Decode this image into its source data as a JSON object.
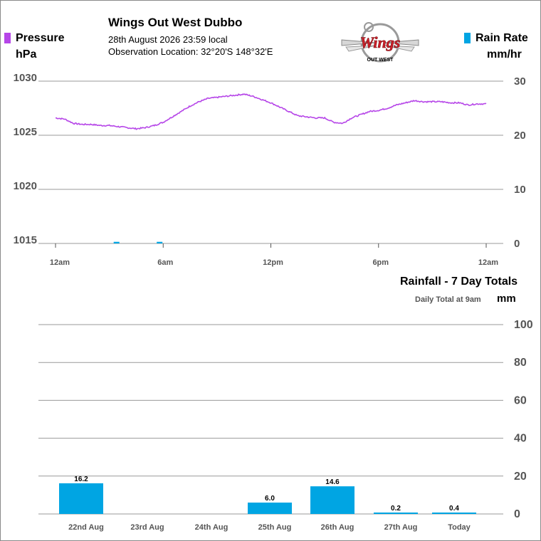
{
  "header": {
    "station_name": "Wings Out West Dubbo",
    "datetime": "28th August 2026  23:59 local",
    "location": "Observation Location: 32°20'S 148°32'E",
    "logo_text": "Wings",
    "logo_subtext": "OUT WEST"
  },
  "legend": {
    "pressure_label": "Pressure",
    "pressure_unit": "hPa",
    "pressure_color": "#b646e8",
    "rain_label": "Rain Rate",
    "rain_unit": "mm/hr",
    "rain_color": "#00a5e3"
  },
  "rain7": {
    "title": "Rainfall - 7 Day Totals",
    "subtitle": "Daily Total at 9am",
    "unit": "mm"
  },
  "chart_data": [
    {
      "type": "line",
      "x_ticks": [
        "12am",
        "6am",
        "12pm",
        "6pm",
        "12am"
      ],
      "x_range_hours": [
        0,
        24
      ],
      "y_left_ticks": [
        "1030",
        "1025",
        "1020",
        "1015"
      ],
      "y_left_range": [
        1015,
        1030
      ],
      "y_right_ticks": [
        "30",
        "20",
        "10",
        "0"
      ],
      "y_right_range": [
        0,
        30
      ],
      "grid": true,
      "series": [
        {
          "name": "Pressure",
          "color": "#b646e8",
          "x": [
            0,
            0.5,
            1,
            1.5,
            2,
            2.5,
            3,
            3.5,
            4,
            4.5,
            5,
            5.5,
            6,
            6.5,
            7,
            7.5,
            8,
            8.5,
            9,
            9.5,
            10,
            10.5,
            11,
            11.5,
            12,
            12.5,
            13,
            13.5,
            14,
            14.5,
            15,
            15.5,
            16,
            16.5,
            17,
            17.5,
            18,
            18.5,
            19,
            19.5,
            20,
            20.5,
            21,
            21.5,
            22,
            22.5,
            23,
            23.5,
            24
          ],
          "y": [
            1026.6,
            1026.5,
            1026.1,
            1026.0,
            1026.0,
            1025.9,
            1025.9,
            1025.8,
            1025.7,
            1025.6,
            1025.7,
            1025.9,
            1026.2,
            1026.7,
            1027.2,
            1027.7,
            1028.1,
            1028.4,
            1028.5,
            1028.6,
            1028.7,
            1028.8,
            1028.6,
            1028.3,
            1028.0,
            1027.6,
            1027.2,
            1026.8,
            1026.7,
            1026.6,
            1026.6,
            1026.2,
            1026.1,
            1026.6,
            1026.9,
            1027.2,
            1027.3,
            1027.5,
            1027.8,
            1028.0,
            1028.2,
            1028.1,
            1028.1,
            1028.1,
            1028.0,
            1028.0,
            1027.8,
            1027.9,
            1027.9
          ]
        },
        {
          "name": "Rain Rate",
          "color": "#00a5e3",
          "type": "bar",
          "x": [
            3.4,
            5.8
          ],
          "y": [
            0.3,
            0.3
          ]
        }
      ]
    },
    {
      "type": "bar",
      "categories": [
        "22nd Aug",
        "23rd Aug",
        "24th Aug",
        "25th Aug",
        "26th Aug",
        "27th Aug",
        "Today"
      ],
      "values": [
        16.2,
        0,
        0,
        6.0,
        14.6,
        0.2,
        0.4
      ],
      "labels": [
        "16.2",
        "",
        "",
        "6.0",
        "14.6",
        "0.2",
        "0.4"
      ],
      "y_ticks": [
        "100",
        "80",
        "60",
        "40",
        "20",
        "0"
      ],
      "ylim": [
        0,
        100
      ],
      "color": "#00a5e3",
      "grid": true
    }
  ]
}
